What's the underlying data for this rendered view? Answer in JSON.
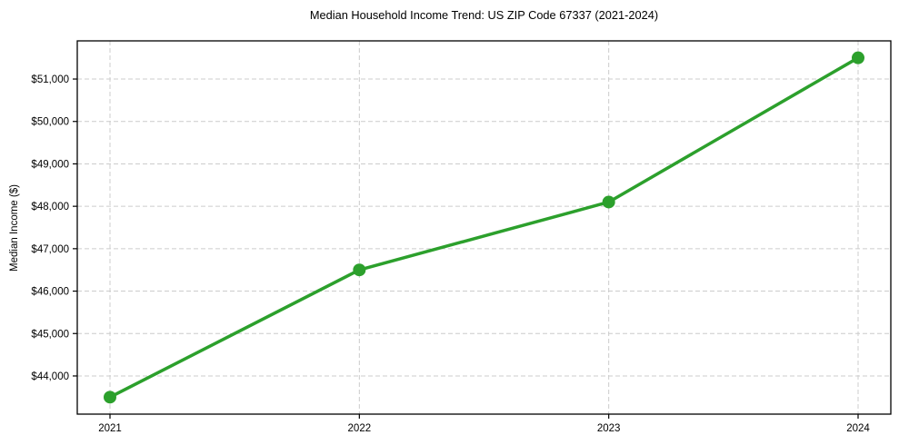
{
  "figure": {
    "background_color": "#ffffff"
  },
  "chart_data": {
    "type": "line",
    "title": "Median Household Income Trend: US ZIP Code 67337 (2021-2024)",
    "xlabel": "",
    "ylabel": "Median Income ($)",
    "categories": [
      "2021",
      "2022",
      "2023",
      "2024"
    ],
    "series": [
      {
        "name": "Median Household Income",
        "values": [
          43500,
          46500,
          48100,
          51500
        ],
        "color": "#2ca02c",
        "marker": "circle"
      }
    ],
    "ylim": [
      43100,
      51900
    ],
    "ytick_values": [
      44000,
      45000,
      46000,
      47000,
      48000,
      49000,
      50000,
      51000
    ],
    "ytick_labels": [
      "$44,000",
      "$45,000",
      "$46,000",
      "$47,000",
      "$48,000",
      "$49,000",
      "$50,000",
      "$51,000"
    ],
    "grid": true,
    "grid_line_style": "dashed",
    "grid_color": "#cccccc",
    "axis_frame_color": "#000000",
    "legend_position": "none"
  }
}
